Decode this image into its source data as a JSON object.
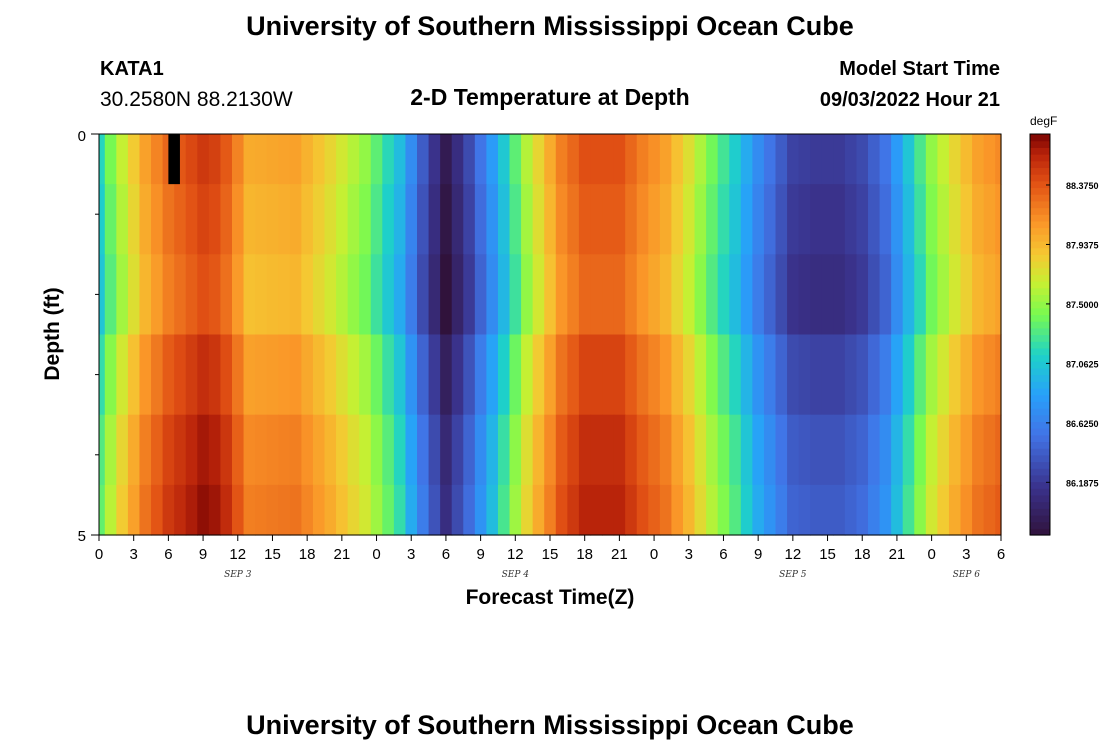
{
  "header": {
    "title": "University of Southern Mississippi Ocean Cube",
    "station": "KATA1",
    "coords": "30.2580N  88.2130W",
    "subtitle": "2-D Temperature at Depth",
    "model_label": "Model Start Time",
    "model_time": "09/03/2022 Hour 21"
  },
  "footer": {
    "title": "University of Southern Mississippi Ocean Cube"
  },
  "chart_data": {
    "type": "heatmap",
    "xlabel": "Forecast Time(Z)",
    "ylabel": "Depth (ft)",
    "y_ticks": [
      "0",
      "5"
    ],
    "x_tick_labels": [
      "0",
      "3",
      "6",
      "9",
      "12",
      "15",
      "18",
      "21",
      "0",
      "3",
      "6",
      "9",
      "12",
      "15",
      "18",
      "21",
      "0",
      "3",
      "6",
      "9",
      "12",
      "15",
      "18",
      "21",
      "0",
      "3",
      "6"
    ],
    "date_labels": [
      {
        "text": "SEP 3",
        "tick_index": 4
      },
      {
        "text": "SEP 4",
        "tick_index": 12
      },
      {
        "text": "SEP 5",
        "tick_index": 20
      },
      {
        "text": "SEP 6",
        "tick_index": 25
      }
    ],
    "x_range_hours": [
      0,
      78
    ],
    "y_range_ft": [
      0,
      5
    ],
    "colorbar": {
      "unit": "degF",
      "ticks": [
        "88.3750",
        "87.9375",
        "87.5000",
        "87.0625",
        "86.6250",
        "86.1875"
      ],
      "tick_values": [
        88.375,
        87.9375,
        87.5,
        87.0625,
        86.625,
        86.1875
      ],
      "min": 85.8,
      "max": 88.75
    },
    "depth_rows": [
      0.25,
      1.0,
      2.0,
      3.0,
      4.0,
      4.75
    ],
    "base_profile": {
      "hours": [
        0,
        1.5,
        4,
        6,
        9,
        10.5,
        13,
        17,
        20,
        23,
        26,
        28,
        30,
        32,
        34,
        37,
        40,
        42,
        45,
        47,
        49,
        51,
        53,
        55,
        57,
        60,
        62,
        64,
        66,
        68,
        70,
        72,
        74,
        76,
        78
      ],
      "temps": [
        87.15,
        87.55,
        88.05,
        88.3,
        88.5,
        88.45,
        88.0,
        88.05,
        87.8,
        87.5,
        87.0,
        86.4,
        85.9,
        86.3,
        86.8,
        87.6,
        88.2,
        88.4,
        88.4,
        88.2,
        88.05,
        87.75,
        87.4,
        87.1,
        86.7,
        86.25,
        86.2,
        86.2,
        86.3,
        86.55,
        87.05,
        87.5,
        87.8,
        88.05,
        88.15
      ]
    },
    "depth_adjust": [
      0.0,
      -0.05,
      -0.1,
      0.05,
      0.15,
      0.2
    ],
    "missing_cell": {
      "hour": 6.5,
      "row": 0
    }
  }
}
